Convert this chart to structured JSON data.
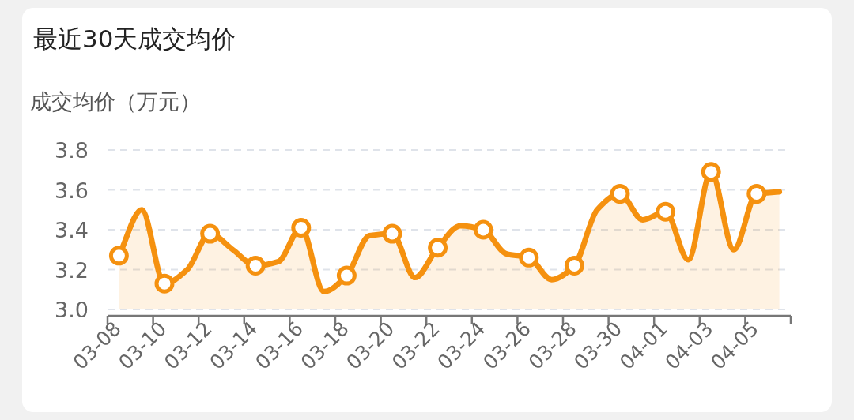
{
  "chart_data": {
    "type": "area",
    "title": "最近30天成交均价",
    "ylabel": "成交均价（万元）",
    "categories": [
      "03-08",
      null,
      "03-10",
      null,
      "03-12",
      null,
      "03-14",
      null,
      "03-16",
      null,
      "03-18",
      null,
      "03-20",
      null,
      "03-22",
      null,
      "03-24",
      null,
      "03-26",
      null,
      "03-28",
      null,
      "03-30",
      null,
      "04-01",
      null,
      "04-03",
      null,
      "04-05",
      null
    ],
    "series": [
      {
        "color": "#f5910f",
        "values": [
          3.27,
          3.5,
          3.13,
          3.2,
          3.38,
          3.3,
          3.22,
          3.24,
          3.41,
          3.09,
          3.17,
          3.37,
          3.38,
          3.16,
          3.31,
          3.42,
          3.4,
          3.28,
          3.26,
          3.15,
          3.22,
          3.5,
          3.58,
          3.45,
          3.49,
          3.25,
          3.69,
          3.3,
          3.58,
          3.59
        ]
      }
    ],
    "ylim": [
      3.0,
      3.8
    ],
    "yticks": [
      {
        "value": 3.0,
        "label": "3.0"
      },
      {
        "value": 3.2,
        "label": "3.2"
      },
      {
        "value": 3.4,
        "label": "3.4"
      },
      {
        "value": 3.6,
        "label": "3.6"
      },
      {
        "value": 3.8,
        "label": "3.8"
      }
    ],
    "grid": "y",
    "marker": "circle"
  }
}
